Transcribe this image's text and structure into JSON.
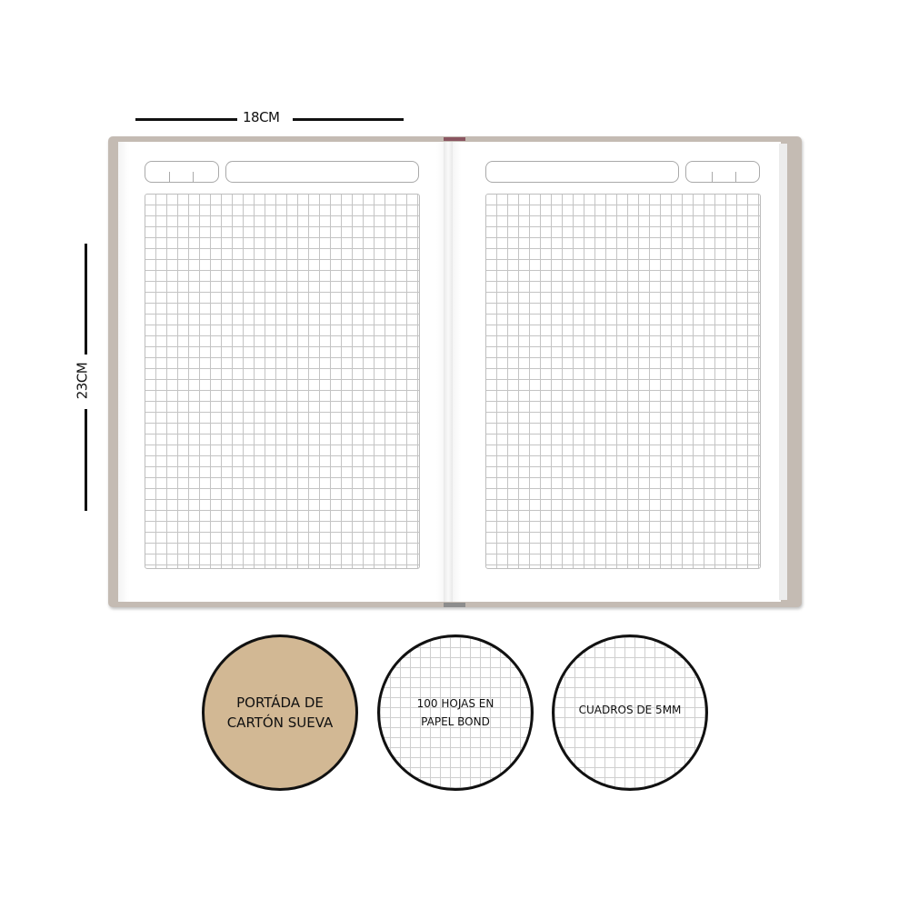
{
  "dimensions": {
    "width_label": "18CM",
    "height_label": "23CM"
  },
  "notebook": {
    "cover_color": "#c4bbb3",
    "ribbon_color": "#b0303a"
  },
  "features": [
    {
      "text": "PORTÁDA DE CARTÓN SUEVA",
      "line1": "PORTÁDA DE",
      "line2": "CARTÓN SUEVA",
      "fill": "#d2b894"
    },
    {
      "text": "100 HOJAS EN PAPEL BOND",
      "line1": "100 HOJAS EN",
      "line2": "PAPEL BOND",
      "fill": "grid"
    },
    {
      "text": "CUADROS DE 5MM",
      "line1": "CUADROS DE 5MM",
      "fill": "grid"
    }
  ]
}
